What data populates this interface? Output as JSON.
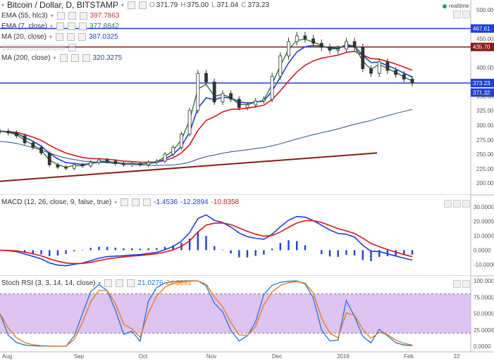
{
  "header": {
    "title": "Bitcoin / Dollar, D, BITSTAMP",
    "ohlc": [
      {
        "k": "O",
        "v": "371.79"
      },
      {
        "k": "H",
        "v": "375.00"
      },
      {
        "k": "L",
        "v": "371.04"
      },
      {
        "k": "C",
        "v": "373.23"
      }
    ],
    "realtime_label": "realtime"
  },
  "indicators": [
    {
      "label": "EMA (55, hlc3)",
      "value": "397.7863",
      "color": "#c0392b"
    },
    {
      "label": "EMA (7, close)",
      "value": "377.8842",
      "color": "#2e7d32"
    },
    {
      "label": "MA (20, close)",
      "value": "387.0325",
      "color": "#1f3fd8"
    },
    {
      "label": "MA (200, close)",
      "value": "320.3275",
      "color": "#2a4a8a"
    }
  ],
  "macd_panel": {
    "label": "MACD (12, 26, close, 9, false, true)",
    "values": [
      {
        "v": "-1.4536",
        "color": "#1f3fd8"
      },
      {
        "v": "-12.2894",
        "color": "#1f3fd8"
      },
      {
        "v": "-10.8358",
        "color": "#d41a1a"
      }
    ]
  },
  "rsi_panel": {
    "label": "Stoch RSI (3, 3, 14, 14, close)",
    "values": [
      {
        "v": "21.0276",
        "color": "#1f77d8"
      },
      {
        "v": "24.3891",
        "color": "#e8761a"
      }
    ]
  },
  "price_axis": {
    "ticks": [
      "500.00",
      "450.00",
      "400.00",
      "350.00",
      "325.00",
      "300.00",
      "275.00",
      "250.00",
      "225.00",
      "200.00"
    ],
    "labels": [
      {
        "text": "467.61",
        "value": 467.61,
        "bg": "#1f3fd8"
      },
      {
        "text": "435.70",
        "value": 435.7,
        "bg": "#8b1a1a"
      },
      {
        "text": "373.23",
        "value": 373.23,
        "bg": "#1f3fd8"
      },
      {
        "text": "371.32",
        "value": 371.32,
        "bg": "#1f3fd8"
      }
    ]
  },
  "macd_axis": {
    "ticks": [
      "30.0000",
      "20.0000",
      "10.0000",
      "0.0000",
      "-10.0000"
    ]
  },
  "rsi_axis": {
    "ticks": [
      "100.0000",
      "75.0000",
      "50.0000",
      "25.0000",
      "0.0000"
    ]
  },
  "time_axis": {
    "ticks": [
      "Aug",
      "Sep",
      "Oct",
      "Nov",
      "Dec",
      "2016",
      "Feb",
      "22"
    ]
  },
  "chart_data": {
    "type": "line",
    "price": {
      "horizontal_levels": [
        467.61,
        435.7,
        373.23
      ],
      "trendline": {
        "from": 203,
        "to": 252
      },
      "close": [
        290,
        287,
        282,
        270,
        262,
        252,
        232,
        228,
        226,
        232,
        230,
        236,
        240,
        238,
        234,
        232,
        234,
        232,
        236,
        238,
        250,
        262,
        285,
        325,
        390,
        375,
        340,
        355,
        345,
        330,
        335,
        342,
        345,
        385,
        420,
        445,
        455,
        450,
        442,
        435,
        430,
        432,
        445,
        435,
        398,
        390,
        410,
        395,
        388,
        380,
        373
      ]
    }
  }
}
